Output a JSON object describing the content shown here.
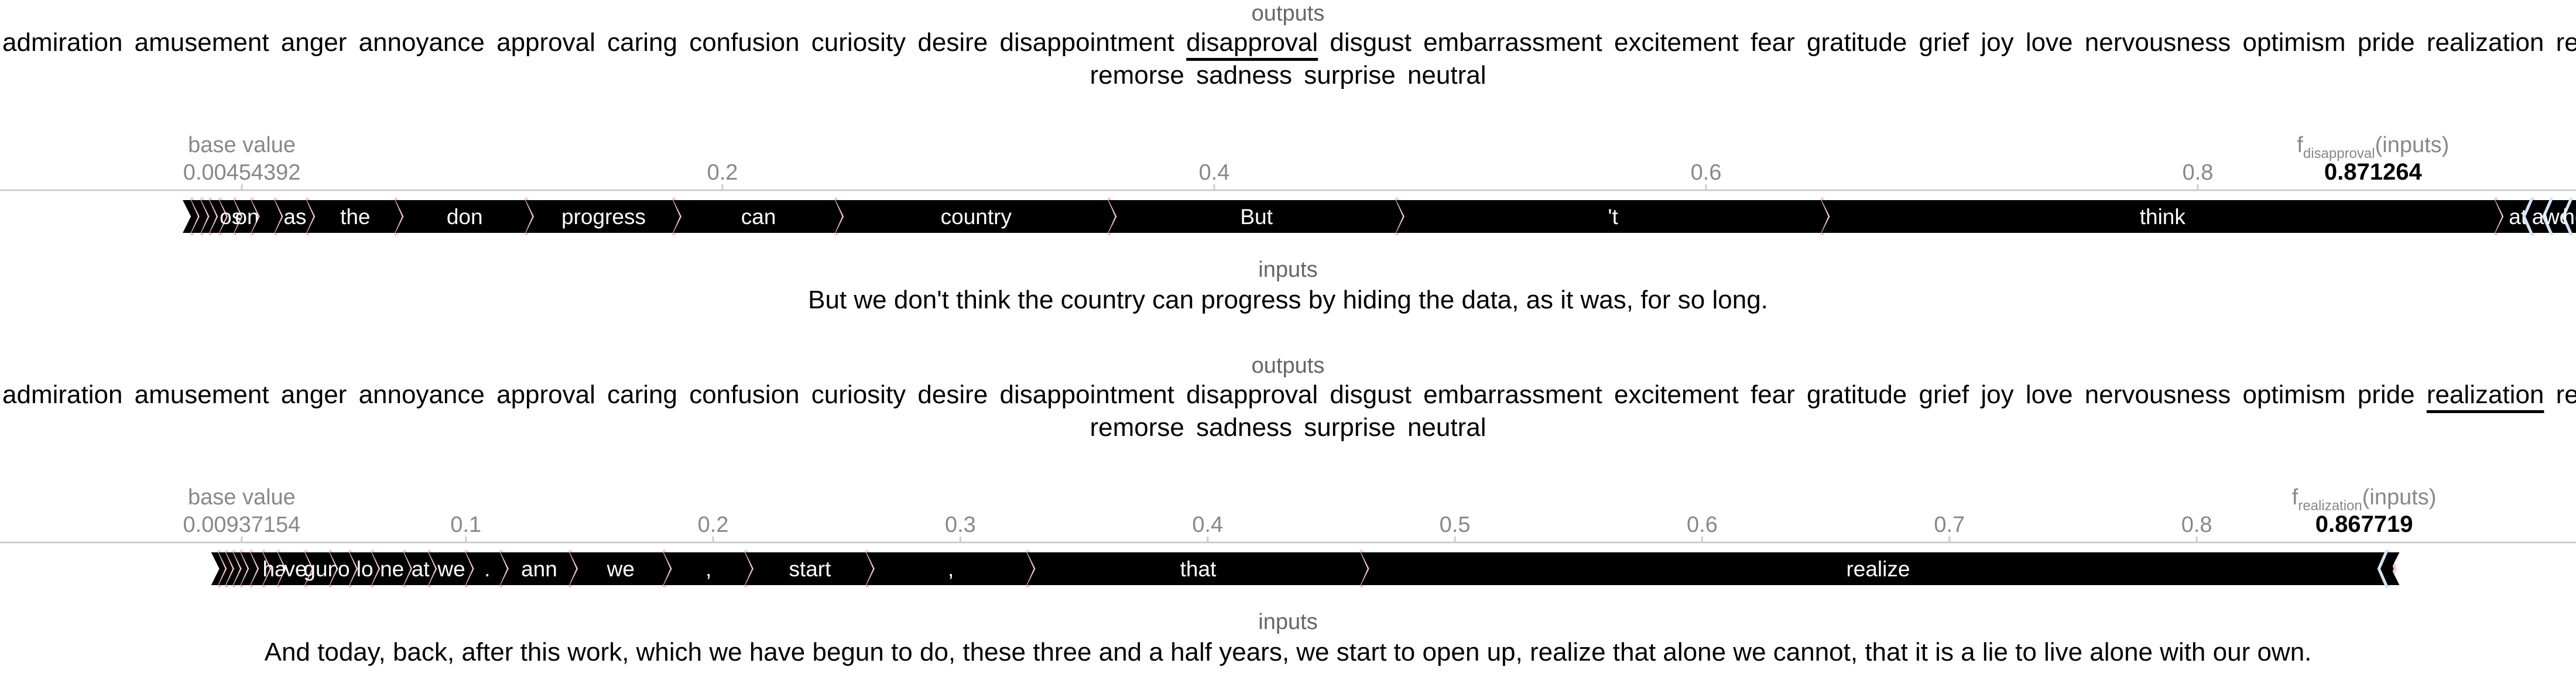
{
  "output_labels": {
    "line1": [
      "admiration",
      "amusement",
      "anger",
      "annoyance",
      "approval",
      "caring",
      "confusion",
      "curiosity",
      "desire",
      "disappointment",
      "disapproval",
      "disgust",
      "embarrassment",
      "excitement",
      "fear",
      "gratitude",
      "grief",
      "joy",
      "love",
      "nervousness",
      "optimism",
      "pride",
      "realization",
      "relief"
    ],
    "line2": [
      "remorse",
      "sadness",
      "surprise",
      "neutral"
    ]
  },
  "chart_data": [
    {
      "type": "force",
      "outputs_title": "outputs",
      "inputs_title": "inputs",
      "selected_output": "disapproval",
      "base_value_label": "base value",
      "base_value": 0.00454392,
      "base_value_text": "0.00454392",
      "fx_prefix": "f",
      "fx_subscript": "disapproval",
      "fx_suffix": "(inputs)",
      "output_value": 0.871264,
      "output_value_text": "0.871264",
      "xlim": [
        -0.02,
        0.88
      ],
      "ticks": [
        "0.2",
        "0.4",
        "0.6",
        "0.8"
      ],
      "ticks_values": [
        0.2,
        0.4,
        0.6,
        0.8
      ],
      "segments": [
        {
          "start": -0.0195,
          "end": -0.016,
          "label": "",
          "sign": "pos"
        },
        {
          "start": -0.016,
          "end": -0.012,
          "label": "",
          "sign": "pos"
        },
        {
          "start": -0.012,
          "end": -0.0085,
          "label": "",
          "sign": "pos"
        },
        {
          "start": -0.0085,
          "end": -0.0045,
          "label": "",
          "sign": "pos"
        },
        {
          "start": -0.0045,
          "end": 0.0015,
          "label": "os",
          "sign": "pos"
        },
        {
          "start": 0.0015,
          "end": 0.0085,
          "label": "on",
          "sign": "pos"
        },
        {
          "start": 0.0085,
          "end": 0.018,
          "label": "",
          "sign": "pos"
        },
        {
          "start": 0.018,
          "end": 0.031,
          "label": "as",
          "sign": "pos"
        },
        {
          "start": 0.031,
          "end": 0.067,
          "label": "the",
          "sign": "pos"
        },
        {
          "start": 0.067,
          "end": 0.12,
          "label": "don",
          "sign": "pos"
        },
        {
          "start": 0.12,
          "end": 0.18,
          "label": "progress",
          "sign": "pos"
        },
        {
          "start": 0.18,
          "end": 0.246,
          "label": "can",
          "sign": "pos"
        },
        {
          "start": 0.246,
          "end": 0.357,
          "label": "country",
          "sign": "pos"
        },
        {
          "start": 0.357,
          "end": 0.474,
          "label": "But",
          "sign": "pos"
        },
        {
          "start": 0.474,
          "end": 0.647,
          "label": "'t",
          "sign": "pos"
        },
        {
          "start": 0.647,
          "end": 0.921,
          "label": "think",
          "sign": "pos"
        },
        {
          "start": 0.921,
          "end": 0.936,
          "label": "at",
          "sign": "pos"
        }
      ],
      "neg_segments": [
        {
          "start": 0.936,
          "end": 0.944,
          "label": "a",
          "sign": "neg"
        },
        {
          "start": 0.944,
          "end": 0.952,
          "label": "we",
          "sign": "neg"
        },
        {
          "start": 0.952,
          "end": 0.958,
          "label": "he",
          "sign": "neg"
        },
        {
          "start": 0.958,
          "end": 0.963,
          "label": "",
          "sign": "neg"
        }
      ],
      "input_text": "But we don't think the country can progress by hiding the data, as it was, for so long."
    },
    {
      "type": "force",
      "outputs_title": "outputs",
      "inputs_title": "inputs",
      "selected_output": "realization",
      "base_value_label": "base value",
      "base_value": 0.00937154,
      "base_value_text": "0.00937154",
      "fx_prefix": "f",
      "fx_subscript": "realization",
      "fx_suffix": "(inputs)",
      "output_value": 0.867719,
      "output_value_text": "0.867719",
      "xlim": [
        -0.015,
        0.88
      ],
      "ticks": [
        "0.1",
        "0.2",
        "0.3",
        "0.4",
        "0.5",
        "0.6",
        "0.7",
        "0.8"
      ],
      "ticks_values": [
        0.1,
        0.2,
        0.3,
        0.4,
        0.5,
        0.6,
        0.7,
        0.8
      ],
      "segments": [
        {
          "start": -0.003,
          "end": 0.0,
          "label": "",
          "sign": "pos"
        },
        {
          "start": 0.0,
          "end": 0.003,
          "label": "",
          "sign": "pos"
        },
        {
          "start": 0.003,
          "end": 0.006,
          "label": "",
          "sign": "pos"
        },
        {
          "start": 0.006,
          "end": 0.009,
          "label": "",
          "sign": "pos"
        },
        {
          "start": 0.009,
          "end": 0.013,
          "label": "",
          "sign": "pos"
        },
        {
          "start": 0.013,
          "end": 0.018,
          "label": "",
          "sign": "pos"
        },
        {
          "start": 0.018,
          "end": 0.024,
          "label": "ha",
          "sign": "pos"
        },
        {
          "start": 0.024,
          "end": 0.035,
          "label": "ve",
          "sign": "pos"
        },
        {
          "start": 0.035,
          "end": 0.045,
          "label": "gun",
          "sign": "pos"
        },
        {
          "start": 0.045,
          "end": 0.053,
          "label": "o",
          "sign": "pos"
        },
        {
          "start": 0.053,
          "end": 0.062,
          "label": "lo",
          "sign": "pos"
        },
        {
          "start": 0.062,
          "end": 0.075,
          "label": "ne",
          "sign": "pos"
        },
        {
          "start": 0.075,
          "end": 0.085,
          "label": "at",
          "sign": "pos"
        },
        {
          "start": 0.085,
          "end": 0.1,
          "label": "we",
          "sign": "pos"
        },
        {
          "start": 0.1,
          "end": 0.114,
          "label": ".",
          "sign": "pos"
        },
        {
          "start": 0.114,
          "end": 0.142,
          "label": "ann",
          "sign": "pos"
        },
        {
          "start": 0.142,
          "end": 0.18,
          "label": "we",
          "sign": "pos"
        },
        {
          "start": 0.18,
          "end": 0.213,
          "label": ",",
          "sign": "pos"
        },
        {
          "start": 0.213,
          "end": 0.262,
          "label": "start",
          "sign": "pos"
        },
        {
          "start": 0.262,
          "end": 0.327,
          "label": ",",
          "sign": "pos"
        },
        {
          "start": 0.327,
          "end": 0.462,
          "label": "that",
          "sign": "pos"
        },
        {
          "start": 0.462,
          "end": 0.877,
          "label": "realize",
          "sign": "pos"
        }
      ],
      "neg_segments": [
        {
          "start": 0.877,
          "end": 0.882,
          "label": "",
          "sign": "neg"
        }
      ],
      "input_text": "And today, back, after this work, which we have begun to do, these three and a half years, we start to open up, realize that alone we cannot, that it is a lie to live alone with our own."
    }
  ],
  "colors": {
    "bar": "#000000",
    "pos_separator": "#ffc3d5",
    "neg_separator": "#d1e6fa",
    "axis": "#cccccc",
    "tick": "#888888"
  }
}
